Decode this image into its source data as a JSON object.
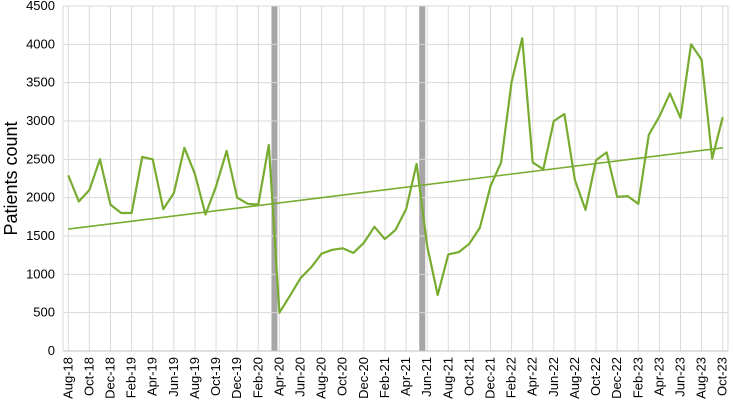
{
  "chart_data": {
    "type": "line",
    "title": "",
    "xlabel": "",
    "ylabel": "Patients count",
    "ylim": [
      0,
      4500
    ],
    "yticks": [
      0,
      500,
      1000,
      1500,
      2000,
      2500,
      3000,
      3500,
      4000,
      4500
    ],
    "grid": true,
    "legend": "none",
    "colors": {
      "series": "#77ac30",
      "trend": "#77ac30",
      "band": "#a6a6a6",
      "grid": "#d9d9d9"
    },
    "x": [
      "Aug-18",
      "Sep-18",
      "Oct-18",
      "Nov-18",
      "Dec-18",
      "Jan-19",
      "Feb-19",
      "Mar-19",
      "Apr-19",
      "May-19",
      "Jun-19",
      "Jul-19",
      "Aug-19",
      "Sep-19",
      "Oct-19",
      "Nov-19",
      "Dec-19",
      "Jan-20",
      "Feb-20",
      "Mar-20",
      "Apr-20",
      "May-20",
      "Jun-20",
      "Jul-20",
      "Aug-20",
      "Sep-20",
      "Oct-20",
      "Nov-20",
      "Dec-20",
      "Jan-21",
      "Feb-21",
      "Mar-21",
      "Apr-21",
      "May-21",
      "Jun-21",
      "Jul-21",
      "Aug-21",
      "Sep-21",
      "Oct-21",
      "Nov-21",
      "Dec-21",
      "Jan-22",
      "Feb-22",
      "Mar-22",
      "Apr-22",
      "May-22",
      "Jun-22",
      "Jul-22",
      "Aug-22",
      "Sep-22",
      "Oct-22",
      "Nov-22",
      "Dec-22",
      "Jan-23",
      "Feb-23",
      "Mar-23",
      "Apr-23",
      "May-23",
      "Jun-23",
      "Jul-23",
      "Aug-23",
      "Sep-23",
      "Oct-23"
    ],
    "tick_labels": [
      "Aug-18",
      "Oct-18",
      "Dec-18",
      "Feb-19",
      "Apr-19",
      "Jun-19",
      "Aug-19",
      "Oct-19",
      "Dec-19",
      "Feb-20",
      "Apr-20",
      "Jun-20",
      "Aug-20",
      "Oct-20",
      "Dec-20",
      "Feb-21",
      "Apr-21",
      "Jun-21",
      "Aug-21",
      "Oct-21",
      "Dec-21",
      "Feb-22",
      "Apr-22",
      "Jun-22",
      "Aug-22",
      "Oct-22",
      "Dec-22",
      "Feb-23",
      "Apr-23",
      "Jun-23",
      "Aug-23",
      "Oct-23"
    ],
    "series": [
      {
        "values": [
          2290,
          1950,
          2100,
          2500,
          1910,
          1800,
          1800,
          2530,
          2500,
          1850,
          2060,
          2650,
          2310,
          1780,
          2150,
          2610,
          2000,
          1920,
          1910,
          2690,
          500,
          720,
          950,
          1090,
          1270,
          1320,
          1340,
          1280,
          1410,
          1620,
          1460,
          1580,
          1850,
          2440,
          1370,
          730,
          1260,
          1290,
          1400,
          1610,
          2150,
          2460,
          3510,
          4080,
          2460,
          2370,
          3000,
          3090,
          2230,
          1840,
          2490,
          2590,
          2010,
          2020,
          1920,
          2820,
          3060,
          3360,
          3040,
          4000,
          3800,
          2510,
          3050
        ]
      }
    ],
    "trendline": {
      "type": "linear",
      "start": 1590,
      "end": 2650
    },
    "shaded_bands": [
      {
        "from": "Mar-20",
        "to": "Apr-20"
      },
      {
        "from": "May-21",
        "to": "Jun-21"
      }
    ]
  }
}
